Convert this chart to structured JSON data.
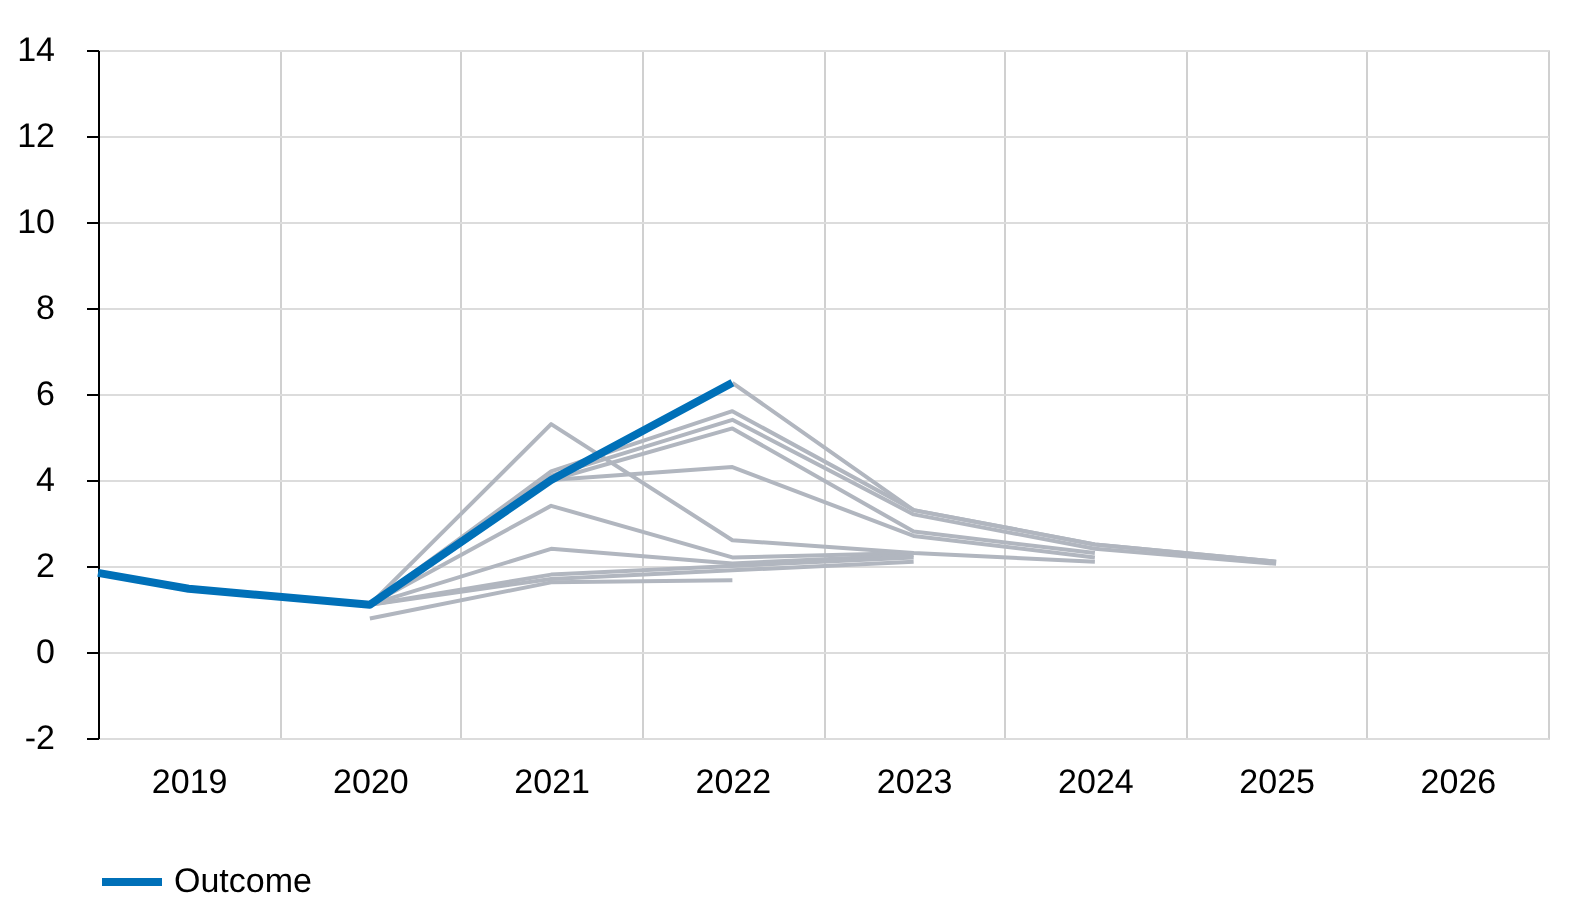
{
  "chart_data": {
    "type": "line",
    "xlim": [
      2018.5,
      2026.5
    ],
    "xticks": [
      {
        "value": 2018.5,
        "label": null
      },
      2019,
      {
        "value": 2019.5,
        "label": null
      },
      2020,
      {
        "value": 2020.5,
        "label": null
      },
      2021,
      {
        "value": 2021.5,
        "label": null
      },
      2022,
      {
        "value": 2022.5,
        "label": null
      },
      2023,
      {
        "value": 2023.5,
        "label": null
      },
      2024,
      {
        "value": 2024.5,
        "label": null
      },
      2025,
      {
        "value": 2025.5,
        "label": null
      },
      2026,
      {
        "value": 2026.5,
        "label": null
      }
    ],
    "ylim": [
      -2,
      14
    ],
    "yticks": [
      -2,
      0,
      2,
      4,
      6,
      8,
      10,
      12,
      14
    ],
    "grid": true,
    "legend": "bottom left",
    "line_style": "solid",
    "marker": "none",
    "series": [
      {
        "color": "#b1b6bf",
        "x": [
          2020,
          2021,
          2022,
          2023,
          2024
        ],
        "values": [
          1.1,
          5.3,
          2.6,
          2.3,
          2.1
        ]
      },
      {
        "color": "#b1b6bf",
        "x": [
          2020,
          2021,
          2022,
          2023,
          2024,
          2025
        ],
        "values": [
          1.1,
          4.2,
          5.6,
          3.3,
          2.5,
          2.1
        ]
      },
      {
        "color": "#b1b6bf",
        "x": [
          2020,
          2021,
          2022,
          2023,
          2024,
          2025
        ],
        "values": [
          1.1,
          4.1,
          5.4,
          3.2,
          2.4,
          2.05
        ]
      },
      {
        "color": "#b1b6bf",
        "x": [
          2020,
          2021,
          2022,
          2023,
          2024
        ],
        "values": [
          1.1,
          4.0,
          5.2,
          2.8,
          2.3
        ]
      },
      {
        "color": "#b1b6bf",
        "x": [
          2020,
          2021,
          2022,
          2023,
          2024
        ],
        "values": [
          1.1,
          4.0,
          4.3,
          2.7,
          2.2
        ]
      },
      {
        "color": "#b1b6bf",
        "x": [
          2020,
          2021,
          2022,
          2023
        ],
        "values": [
          1.1,
          3.4,
          2.2,
          2.3
        ]
      },
      {
        "color": "#b1b6bf",
        "x": [
          2020,
          2021,
          2022,
          2023
        ],
        "values": [
          1.1,
          2.4,
          2.06,
          2.25
        ]
      },
      {
        "color": "#b1b6bf",
        "x": [
          2020,
          2021,
          2022,
          2023
        ],
        "values": [
          1.1,
          1.8,
          2.0,
          2.2
        ]
      },
      {
        "color": "#b1b6bf",
        "x": [
          2020,
          2021,
          2022,
          2023
        ],
        "values": [
          1.1,
          1.7,
          1.9,
          2.1
        ]
      },
      {
        "color": "#b1b6bf",
        "x": [
          2020,
          2021,
          2022
        ],
        "values": [
          0.78,
          1.62,
          1.67
        ]
      },
      {
        "color": "#b1b6bf",
        "x": [
          2022,
          2023,
          2024,
          2025
        ],
        "values": [
          6.26,
          3.3,
          2.5,
          2.1
        ]
      },
      {
        "name": "Outcome",
        "color": "#0070b8",
        "x": [
          2018.5,
          2019,
          2020,
          2021,
          2022
        ],
        "values": [
          1.84,
          1.47,
          1.1,
          4.0,
          6.26
        ]
      }
    ]
  }
}
